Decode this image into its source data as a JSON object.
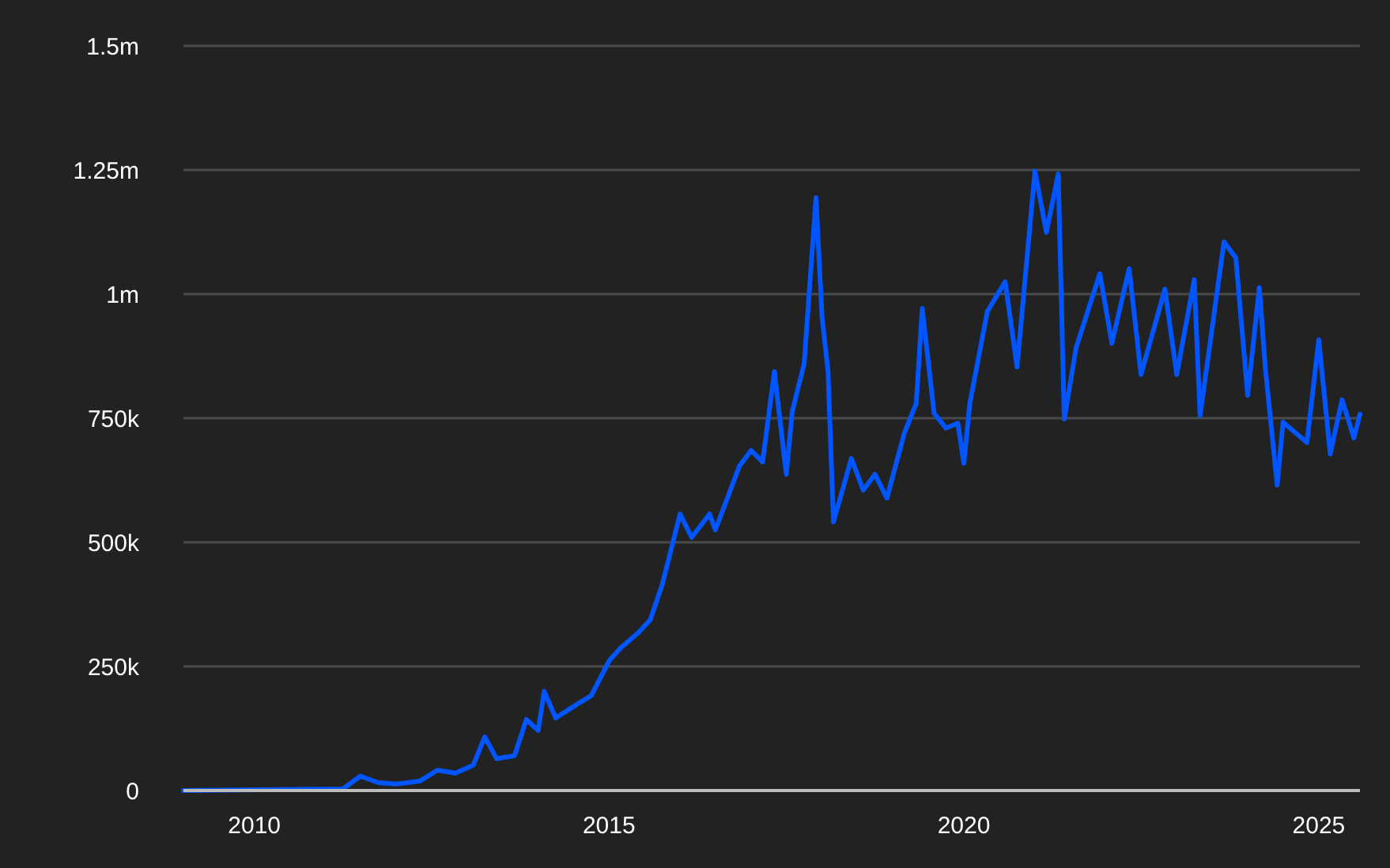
{
  "chart_data": {
    "type": "line",
    "x": [
      "2009-01",
      "2011-04",
      "2011-07",
      "2011-10",
      "2012-01",
      "2012-05",
      "2012-08",
      "2012-11",
      "2013-02",
      "2013-04",
      "2013-06",
      "2013-09",
      "2013-11",
      "2014-01",
      "2014-02",
      "2014-04",
      "2014-07",
      "2014-10",
      "2015-01",
      "2015-03",
      "2015-06",
      "2015-08",
      "2015-10",
      "2015-11",
      "2016-01",
      "2016-03",
      "2016-06",
      "2016-07",
      "2016-09",
      "2016-11",
      "2017-01",
      "2017-03",
      "2017-05",
      "2017-07",
      "2017-08",
      "2017-10",
      "2017-12",
      "2018-01",
      "2018-02",
      "2018-03",
      "2018-06",
      "2018-08",
      "2018-10",
      "2018-12",
      "2019-03",
      "2019-05",
      "2019-06",
      "2019-08",
      "2019-10",
      "2019-12",
      "2020-01",
      "2020-02",
      "2020-05",
      "2020-08",
      "2020-10",
      "2021-01",
      "2021-03",
      "2021-05",
      "2021-06",
      "2021-08",
      "2021-12",
      "2022-02",
      "2022-05",
      "2022-07",
      "2022-11",
      "2023-01",
      "2023-04",
      "2023-05",
      "2023-09",
      "2023-11",
      "2024-01",
      "2024-03",
      "2024-04",
      "2024-06",
      "2024-07",
      "2024-11",
      "2025-01",
      "2025-03",
      "2025-05",
      "2025-07",
      "2025-08"
    ],
    "series": [
      {
        "color": "#0055ff",
        "values": [
          0,
          3000,
          29000,
          16000,
          13000,
          19000,
          41000,
          35000,
          51000,
          108000,
          64000,
          70000,
          143000,
          121000,
          200000,
          146000,
          169000,
          191000,
          261000,
          287000,
          318000,
          344000,
          414000,
          462000,
          557000,
          510000,
          557000,
          525000,
          589000,
          653000,
          685000,
          662000,
          844000,
          637000,
          764000,
          860000,
          1194000,
          955000,
          844000,
          541000,
          669000,
          605000,
          637000,
          589000,
          720000,
          780000,
          971000,
          760000,
          730000,
          740000,
          659000,
          780000,
          965000,
          1025000,
          853000,
          1248000,
          1124000,
          1242000,
          748000,
          892000,
          1041000,
          901000,
          1051000,
          838000,
          1010000,
          838000,
          1029000,
          755000,
          1105000,
          1073000,
          796000,
          1013000,
          850000,
          615000,
          742000,
          701000,
          908000,
          678000,
          787000,
          710000,
          758000
        ]
      }
    ],
    "xlim": [
      "2009-01",
      "2025-08"
    ],
    "xticks": [
      {
        "value": "2010",
        "label": "2010"
      },
      {
        "value": "2015",
        "label": "2015"
      },
      {
        "value": "2020",
        "label": "2020"
      },
      {
        "value": "2025",
        "label": "2025"
      }
    ],
    "ylim": [
      0,
      1500000
    ],
    "yticks": [
      0,
      {
        "value": 250000,
        "label": "250k"
      },
      {
        "value": 500000,
        "label": "500k"
      },
      {
        "value": 750000,
        "label": "750k"
      },
      {
        "value": 1000000,
        "label": "1m"
      },
      {
        "value": 1250000,
        "label": "1.25m"
      },
      {
        "value": 1500000,
        "label": "1.5m"
      }
    ],
    "grid": "y",
    "line_style": "solid",
    "marker": "none"
  }
}
